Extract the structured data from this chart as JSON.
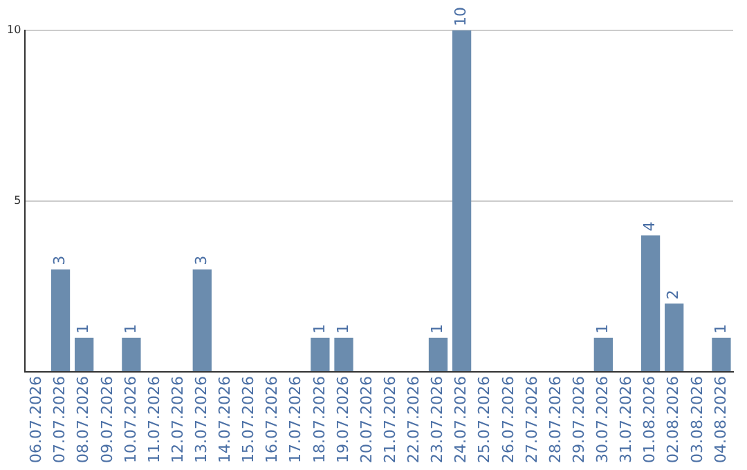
{
  "chart_data": {
    "type": "bar",
    "categories": [
      "06.07.2026",
      "07.07.2026",
      "08.07.2026",
      "09.07.2026",
      "10.07.2026",
      "11.07.2026",
      "12.07.2026",
      "13.07.2026",
      "14.07.2026",
      "15.07.2026",
      "16.07.2026",
      "17.07.2026",
      "18.07.2026",
      "19.07.2026",
      "20.07.2026",
      "21.07.2026",
      "22.07.2026",
      "23.07.2026",
      "24.07.2026",
      "25.07.2026",
      "26.07.2026",
      "27.07.2026",
      "28.07.2026",
      "29.07.2026",
      "30.07.2026",
      "31.07.2026",
      "01.08.2026",
      "02.08.2026",
      "03.08.2026",
      "04.08.2026"
    ],
    "values": [
      0,
      3,
      1,
      0,
      1,
      0,
      0,
      3,
      0,
      0,
      0,
      0,
      1,
      1,
      0,
      0,
      0,
      1,
      10,
      0,
      0,
      0,
      0,
      0,
      1,
      0,
      4,
      2,
      0,
      1
    ],
    "value_labels": [
      null,
      "3",
      "1",
      null,
      "1",
      null,
      null,
      "3",
      null,
      null,
      null,
      null,
      "1",
      "1",
      null,
      null,
      null,
      "1",
      "10",
      null,
      null,
      null,
      null,
      null,
      "1",
      null,
      "4",
      "2",
      null,
      "1"
    ],
    "color": "#6b8cae",
    "ylim": [
      0,
      10
    ],
    "yticks": [
      {
        "value": 0,
        "label": null
      },
      5,
      10
    ],
    "grid": "y"
  }
}
